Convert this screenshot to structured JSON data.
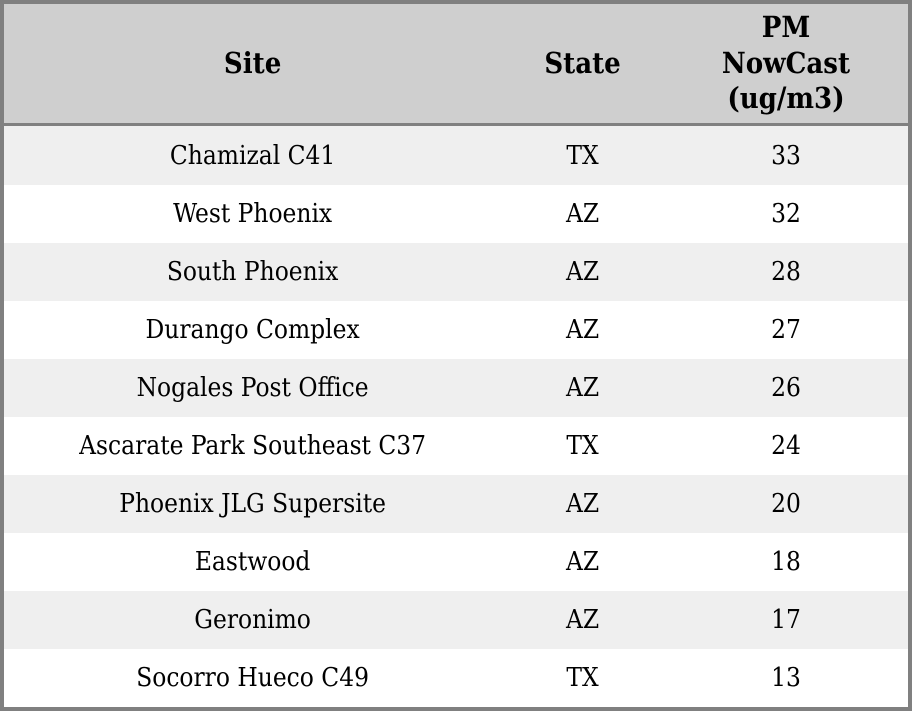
{
  "colors": {
    "border": "#808080",
    "header_bg": "#cfcfcf",
    "row_alt_bg": "#efefef",
    "row_bg": "#ffffff",
    "text": "#000000"
  },
  "chart_data": {
    "type": "table",
    "columns": [
      "Site",
      "State",
      "PM NowCast (ug/m3)"
    ],
    "rows": [
      [
        "Chamizal C41",
        "TX",
        33
      ],
      [
        "West Phoenix",
        "AZ",
        32
      ],
      [
        "South Phoenix",
        "AZ",
        28
      ],
      [
        "Durango Complex",
        "AZ",
        27
      ],
      [
        "Nogales Post Office",
        "AZ",
        26
      ],
      [
        "Ascarate Park Southeast C37",
        "TX",
        24
      ],
      [
        "Phoenix JLG Supersite",
        "AZ",
        20
      ],
      [
        "Eastwood",
        "AZ",
        18
      ],
      [
        "Geronimo",
        "AZ",
        17
      ],
      [
        "Socorro Hueco C49",
        "TX",
        13
      ]
    ]
  }
}
